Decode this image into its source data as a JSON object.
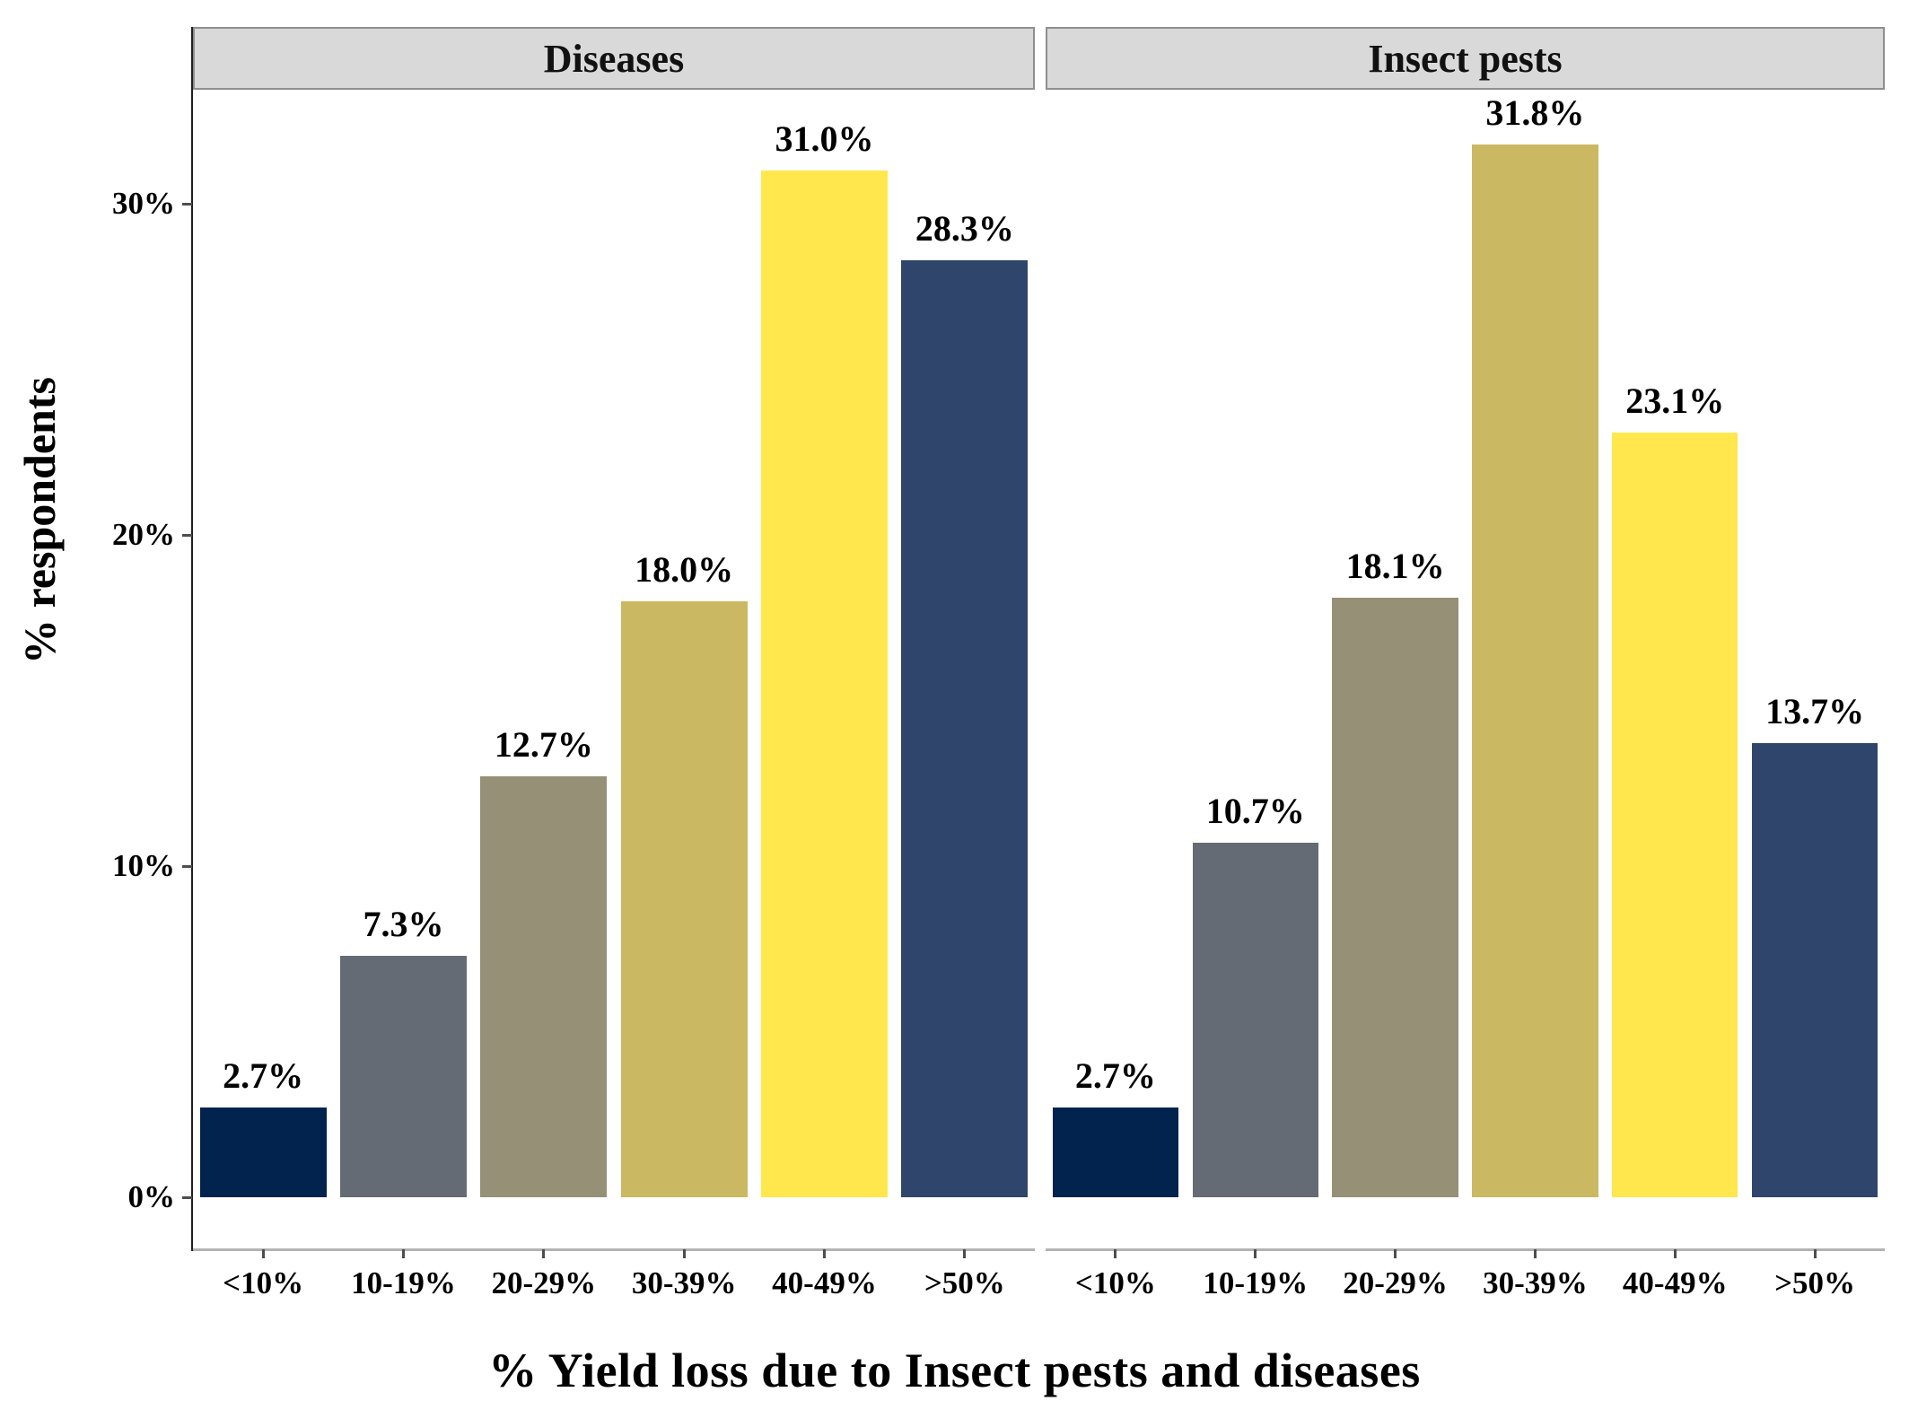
{
  "chart_data": {
    "type": "bar",
    "title": "",
    "xlabel": "% Yield loss due to Insect pests and diseases",
    "ylabel": "% respondents",
    "categories": [
      "<10%",
      "10-19%",
      "20-29%",
      "30-39%",
      "40-49%",
      ">50%"
    ],
    "panels": [
      {
        "label": "Diseases",
        "values": [
          2.7,
          7.3,
          12.7,
          18.0,
          31.0,
          28.3
        ],
        "value_labels": [
          "2.7%",
          "7.3%",
          "12.7%",
          "18.0%",
          "31.0%",
          "28.3%"
        ]
      },
      {
        "label": "Insect pests",
        "values": [
          2.7,
          10.7,
          18.1,
          31.8,
          23.1,
          13.7
        ],
        "value_labels": [
          "2.7%",
          "10.7%",
          "18.1%",
          "31.8%",
          "23.1%",
          "13.7%"
        ]
      }
    ],
    "bar_colors": [
      "#02234d",
      "#656b74",
      "#959076",
      "#cbb863",
      "#ffe74d",
      "#2f456b"
    ],
    "yticks": [
      {
        "value": 0,
        "label": "0%"
      },
      {
        "value": 10,
        "label": "10%"
      },
      {
        "value": 20,
        "label": "20%"
      },
      {
        "value": 30,
        "label": "30%"
      }
    ],
    "ylim": [
      0,
      33.4
    ],
    "grid": false,
    "legend": "none",
    "colors": {
      "strip_background": "#d9d9d9",
      "strip_border": "#8f8f8f",
      "x_axis_line": "#b3b3b3",
      "y_axis_line": "#1f1f1f",
      "label_text": "#000000"
    }
  }
}
